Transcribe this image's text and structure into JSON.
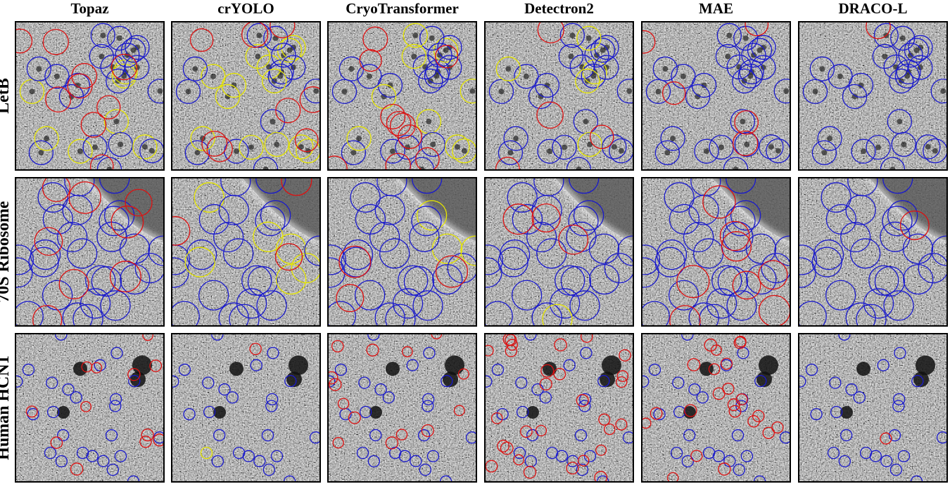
{
  "columns": [
    "Topaz",
    "crYOLO",
    "CryoTransformer",
    "Detectron2",
    "MAE",
    "DRACO-L"
  ],
  "rows": [
    "LetB",
    "70S Ribosome",
    "Human HCN1"
  ]
}
